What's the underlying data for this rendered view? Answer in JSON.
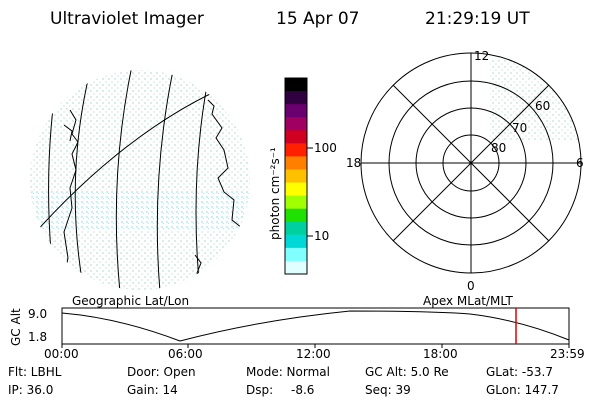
{
  "header": {
    "instrument": "Ultraviolet Imager",
    "date": "15 Apr 07",
    "time": "21:29:19 UT"
  },
  "colorbar": {
    "unit_label": "photon cm⁻²s⁻¹",
    "ticks": [
      "100",
      "10"
    ],
    "colors": [
      "#000000",
      "#300040",
      "#6a0070",
      "#a00060",
      "#d00020",
      "#ff2000",
      "#ff8000",
      "#ffc000",
      "#ffff00",
      "#a0ff00",
      "#20e000",
      "#00d0a0",
      "#00d8d8",
      "#80ffff",
      "#e0ffff"
    ]
  },
  "polar": {
    "mlt_labels": {
      "top": "12",
      "left": "18",
      "right": "6",
      "bottom": "0"
    },
    "lat_labels": [
      "60",
      "70",
      "80"
    ]
  },
  "timeline": {
    "left_label": "Geographic Lat/Lon",
    "right_label": "Apex MLat/MLT",
    "y_axis_label": "GC Alt",
    "y_ticks": [
      "9.0",
      "1.8"
    ],
    "x_ticks": [
      "00:00",
      "06:00",
      "12:00",
      "18:00",
      "23:59"
    ],
    "marker_color": "#e00000"
  },
  "status": {
    "flt": "Flt: LBHL",
    "ip": "IP: 36.0",
    "door": "Door: Open",
    "gain": "Gain: 14",
    "mode": "Mode: Normal",
    "dsp_label": "Dsp:",
    "dsp_value": "-8.6",
    "gc_alt": "GC Alt: 5.0 Re",
    "seq": "Seq: 39",
    "glat": "GLat: -53.7",
    "glon": "GLon: 147.7"
  }
}
